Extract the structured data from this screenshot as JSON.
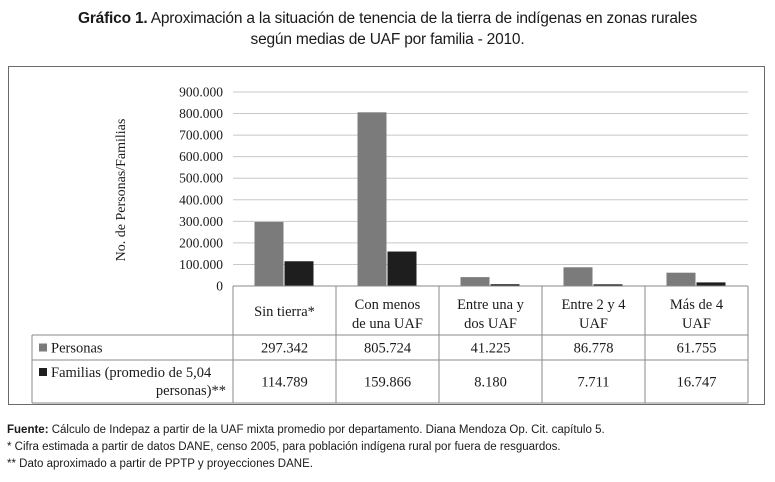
{
  "figure": {
    "label": "Gráfico 1.",
    "title_line1": "Aproximación a la situación de tenencia de la tierra de indígenas en zonas rurales",
    "title_line2": "según medias de UAF por familia - 2010."
  },
  "chart_data": {
    "type": "bar",
    "ylabel": "No. de Personas/Familias",
    "ylim": [
      0,
      900000
    ],
    "yticks": [
      "900.000",
      "800.000",
      "700.000",
      "600.000",
      "500.000",
      "400.000",
      "300.000",
      "200.000",
      "100.000",
      "0"
    ],
    "grid": true,
    "categories": [
      [
        "Sin tierra*"
      ],
      [
        "Con menos",
        "de una UAF"
      ],
      [
        "Entre una y",
        "dos UAF"
      ],
      [
        "Entre 2 y 4",
        "UAF"
      ],
      [
        "Más de 4",
        "UAF"
      ]
    ],
    "series": [
      {
        "name": "Personas",
        "color": "#7b7b7b",
        "values": [
          297342,
          805724,
          41225,
          86778,
          61755
        ],
        "labels": [
          "297.342",
          "805.724",
          "41.225",
          "86.778",
          "61.755"
        ]
      },
      {
        "name_lines": [
          "Familias (promedio de 5,04",
          "personas)**"
        ],
        "color": "#1e1e1e",
        "values": [
          114789,
          159866,
          8180,
          7711,
          16747
        ],
        "labels": [
          "114.789",
          "159.866",
          "8.180",
          "7.711",
          "16.747"
        ]
      }
    ]
  },
  "notes": {
    "source_label": "Fuente:",
    "source_text": " Cálculo de Indepaz a partir de la UAF mixta promedio por departamento. Diana Mendoza Op. Cit. capítulo 5.",
    "note1": "* Cifra estimada a partir de datos DANE, censo 2005, para población indígena rural por fuera de resguardos.",
    "note2": "** Dato aproximado a partir de PPTP y proyecciones DANE."
  }
}
